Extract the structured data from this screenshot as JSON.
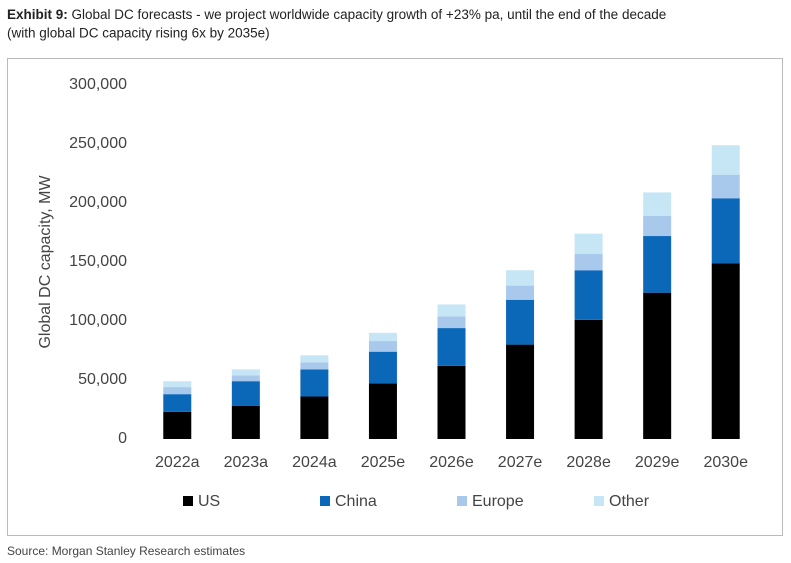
{
  "header": {
    "label": "Exhibit 9:",
    "title_line1": "Global DC forecasts - we project worldwide capacity growth of +23% pa, until the end of the decade",
    "title_line2": "(with global DC capacity rising 6x by 2035e)"
  },
  "chart_data": {
    "type": "stacked-bar",
    "y_label": "Global DC capacity, MW",
    "categories": [
      "2022a",
      "2023a",
      "2024a",
      "2025e",
      "2026e",
      "2027e",
      "2028e",
      "2029e",
      "2030e"
    ],
    "series": [
      {
        "name": "US",
        "color": "#000000",
        "values": [
          23000,
          28000,
          36000,
          47000,
          62000,
          80000,
          101000,
          124000,
          149000
        ]
      },
      {
        "name": "China",
        "color": "#0b67b8",
        "values": [
          15000,
          21000,
          23000,
          27000,
          32000,
          38000,
          42000,
          48000,
          55000
        ]
      },
      {
        "name": "Europe",
        "color": "#a8c8ec",
        "values": [
          6000,
          5000,
          6000,
          9000,
          10000,
          12000,
          14000,
          17000,
          20000
        ]
      },
      {
        "name": "Other",
        "color": "#c6e6f6",
        "values": [
          5000,
          5000,
          6000,
          7000,
          10000,
          13000,
          17000,
          20000,
          25000
        ]
      }
    ],
    "ylim": [
      0,
      300000
    ],
    "yticks": [
      0,
      {
        "value": 50000,
        "label": "50,000"
      },
      {
        "value": 100000,
        "label": "100,000"
      },
      {
        "value": 150000,
        "label": "150,000"
      },
      {
        "value": 200000,
        "label": "200,000"
      },
      {
        "value": 250000,
        "label": "250,000"
      },
      {
        "value": 300000,
        "label": "300,000"
      }
    ]
  },
  "source": "Source: Morgan Stanley Research estimates"
}
